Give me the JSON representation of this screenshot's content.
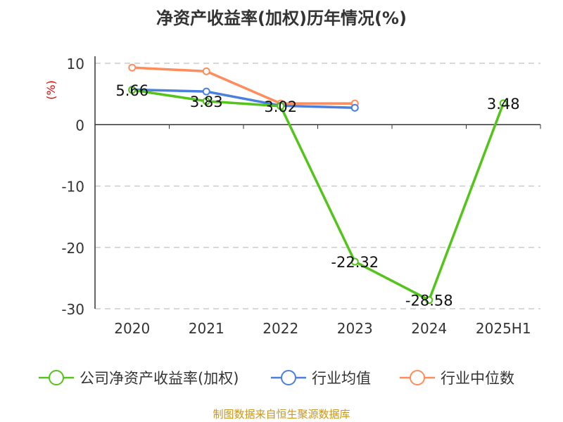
{
  "chart_data": {
    "type": "line",
    "title": "净资产收益率(加权)历年情况(%)",
    "ylabel": "(%)",
    "categories": [
      "2020",
      "2021",
      "2022",
      "2023",
      "2024",
      "2025H1"
    ],
    "ylim": [
      -30,
      10
    ],
    "yticks": [
      10,
      0,
      -10,
      -20,
      -30
    ],
    "grid": true,
    "legend_position": "bottom",
    "series": [
      {
        "name": "公司净资产收益率(加权)",
        "color": "#52c41a",
        "values": [
          5.66,
          3.83,
          3.02,
          -22.32,
          -28.58,
          3.48
        ],
        "labels": [
          "5.66",
          "3.83",
          "3.02",
          "-22.32",
          "-28.58",
          "3.48"
        ]
      },
      {
        "name": "行业均值",
        "color": "#4a7fe0",
        "values": [
          5.7,
          5.4,
          3.1,
          2.75,
          null,
          null
        ]
      },
      {
        "name": "行业中位数",
        "color": "#ff8c5a",
        "values": [
          9.3,
          8.7,
          3.45,
          3.45,
          null,
          null
        ]
      }
    ]
  },
  "source": "制图数据来自恒生聚源数据库"
}
